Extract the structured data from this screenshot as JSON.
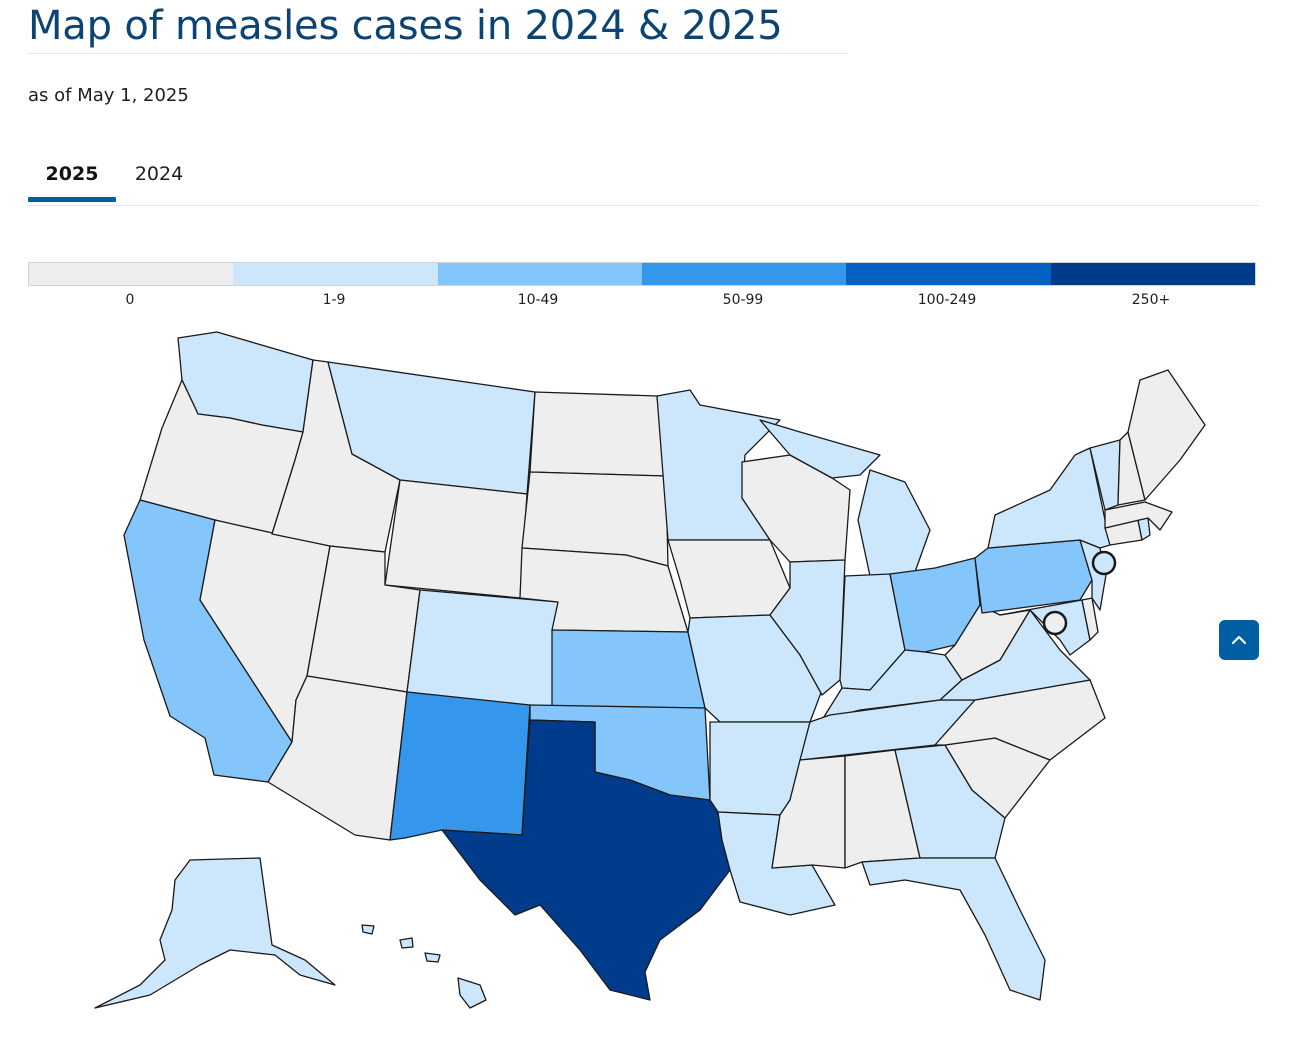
{
  "page": {
    "title": "Map of measles cases in 2024 & 2025",
    "subtitle": "as of May 1, 2025"
  },
  "tabs": [
    {
      "label": "2025",
      "selected": true
    },
    {
      "label": "2024",
      "selected": false
    }
  ],
  "legend": {
    "bins": [
      {
        "label": "0",
        "color": "#eeeeee"
      },
      {
        "label": "1-9",
        "color": "#cce7fc"
      },
      {
        "label": "10-49",
        "color": "#84c6fb"
      },
      {
        "label": "50-99",
        "color": "#3597eb"
      },
      {
        "label": "100-249",
        "color": "#0261c1"
      },
      {
        "label": "250+",
        "color": "#013c8c"
      }
    ]
  },
  "map": {
    "year": "2025",
    "states": {
      "WA": "1-9",
      "OR": "0",
      "CA": "10-49",
      "NV": "0",
      "ID": "0",
      "MT": "1-9",
      "WY": "0",
      "UT": "0",
      "AZ": "0",
      "CO": "1-9",
      "NM": "50-99",
      "ND": "0",
      "SD": "0",
      "NE": "0",
      "KS": "10-49",
      "OK": "10-49",
      "TX": "250+",
      "MN": "1-9",
      "IA": "0",
      "MO": "1-9",
      "AR": "1-9",
      "LA": "1-9",
      "WI": "0",
      "IL": "1-9",
      "MI": "1-9",
      "IN": "1-9",
      "OH": "10-49",
      "KY": "1-9",
      "TN": "1-9",
      "MS": "0",
      "AL": "0",
      "GA": "1-9",
      "FL": "1-9",
      "SC": "0",
      "NC": "0",
      "VA": "1-9",
      "WV": "0",
      "MD": "1-9",
      "DE": "0",
      "PA": "10-49",
      "NJ": "1-9",
      "NY": "1-9",
      "CT": "0",
      "RI": "1-9",
      "MA": "0",
      "VT": "1-9",
      "NH": "0",
      "ME": "0",
      "AK": "1-9",
      "HI": "1-9",
      "DC": "0",
      "NYC": "1-9"
    }
  },
  "back_to_top": {
    "icon": "chevron-up-icon"
  }
}
